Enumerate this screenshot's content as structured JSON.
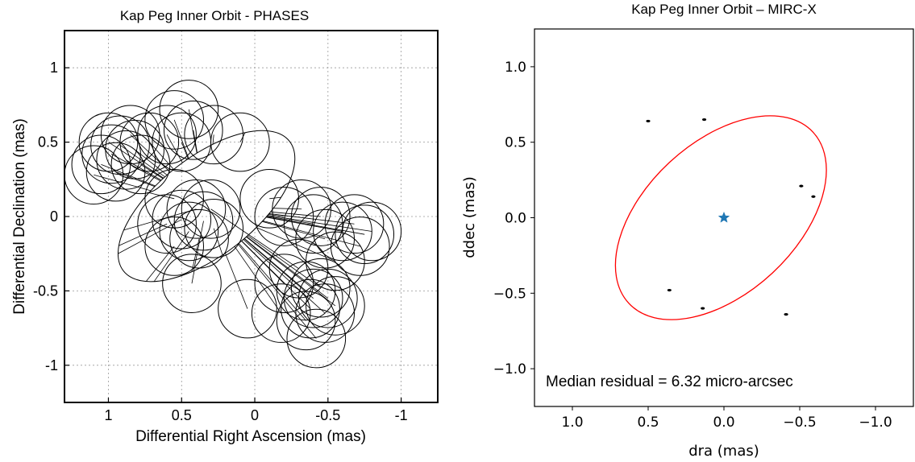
{
  "chart_data": [
    {
      "type": "scatter",
      "title": "Kap Peg Inner Orbit - PHASES",
      "xlabel": "Differential Right Ascension (mas)",
      "ylabel": "Differential Declination (mas)",
      "xlim": [
        1.3,
        -1.25
      ],
      "ylim": [
        -1.25,
        1.25
      ],
      "x_ticks": [
        1,
        0.5,
        0,
        -0.5,
        -1
      ],
      "y_ticks": [
        1,
        0.5,
        0,
        -0.5,
        -1
      ],
      "x_tick_labels": [
        "1",
        "0.5",
        "0",
        "-0.5",
        "-1"
      ],
      "y_tick_labels": [
        "1",
        "0.5",
        "0",
        "-0.5",
        "-1"
      ],
      "grid": true,
      "orbit": {
        "center": [
          0.33,
          0.07
        ],
        "a": 0.72,
        "b": 0.33,
        "angle_deg": -38
      },
      "error_circle_radius": 0.2,
      "points": [
        {
          "x": 1.1,
          "y": 0.28
        },
        {
          "x": 1.05,
          "y": 0.35
        },
        {
          "x": 0.98,
          "y": 0.42
        },
        {
          "x": 0.92,
          "y": 0.48
        },
        {
          "x": 0.88,
          "y": 0.38
        },
        {
          "x": 0.82,
          "y": 0.45
        },
        {
          "x": 0.95,
          "y": 0.3
        },
        {
          "x": 0.78,
          "y": 0.35
        },
        {
          "x": 1.0,
          "y": 0.5
        },
        {
          "x": 0.85,
          "y": 0.55
        },
        {
          "x": 0.72,
          "y": 0.5
        },
        {
          "x": 0.6,
          "y": 0.55
        },
        {
          "x": 0.5,
          "y": 0.5
        },
        {
          "x": 0.55,
          "y": 0.65
        },
        {
          "x": 0.42,
          "y": 0.58
        },
        {
          "x": 0.45,
          "y": 0.72
        },
        {
          "x": 0.28,
          "y": 0.55
        },
        {
          "x": 0.1,
          "y": 0.5
        },
        {
          "x": 0.55,
          "y": 0.12
        },
        {
          "x": 0.6,
          "y": -0.05
        },
        {
          "x": 0.5,
          "y": -0.02
        },
        {
          "x": 0.45,
          "y": -0.1
        },
        {
          "x": 0.4,
          "y": 0.05
        },
        {
          "x": 0.35,
          "y": -0.03
        },
        {
          "x": 0.3,
          "y": 0.05
        },
        {
          "x": 0.38,
          "y": -0.15
        },
        {
          "x": 0.28,
          "y": -0.08
        },
        {
          "x": 0.55,
          "y": -0.2
        },
        {
          "x": 0.43,
          "y": -0.45
        },
        {
          "x": 0.05,
          "y": -0.62
        },
        {
          "x": -0.1,
          "y": 0.12
        },
        {
          "x": -0.2,
          "y": 0.0
        },
        {
          "x": -0.32,
          "y": 0.05
        },
        {
          "x": -0.4,
          "y": -0.05
        },
        {
          "x": -0.45,
          "y": 0.0
        },
        {
          "x": -0.48,
          "y": -0.15
        },
        {
          "x": -0.6,
          "y": -0.1
        },
        {
          "x": -0.68,
          "y": -0.05
        },
        {
          "x": -0.75,
          "y": -0.12
        },
        {
          "x": -0.8,
          "y": -0.1
        },
        {
          "x": -0.72,
          "y": -0.2
        },
        {
          "x": -0.55,
          "y": -0.3
        },
        {
          "x": -0.3,
          "y": -0.35
        },
        {
          "x": -0.2,
          "y": -0.45
        },
        {
          "x": -0.35,
          "y": -0.5
        },
        {
          "x": -0.45,
          "y": -0.48
        },
        {
          "x": -0.5,
          "y": -0.55
        },
        {
          "x": -0.4,
          "y": -0.55
        },
        {
          "x": -0.55,
          "y": -0.6
        },
        {
          "x": -0.48,
          "y": -0.65
        },
        {
          "x": -0.38,
          "y": -0.62
        },
        {
          "x": -0.35,
          "y": -0.7
        },
        {
          "x": -0.18,
          "y": -0.65
        },
        {
          "x": -0.42,
          "y": -0.82
        }
      ]
    },
    {
      "type": "scatter",
      "title": "Kap Peg Inner Orbit – MIRC-X",
      "xlabel": "dra (mas)",
      "ylabel": "ddec (mas)",
      "xlim": [
        1.25,
        -1.25
      ],
      "ylim": [
        -1.25,
        1.25
      ],
      "x_ticks": [
        1.0,
        0.5,
        0.0,
        -0.5,
        -1.0
      ],
      "y_ticks": [
        1.0,
        0.5,
        0.0,
        -0.5,
        -1.0
      ],
      "x_tick_labels": [
        "1.0",
        "0.5",
        "0.0",
        "−0.5",
        "−1.0"
      ],
      "y_tick_labels": [
        "1.0",
        "0.5",
        "0.0",
        "−0.5",
        "−1.0"
      ],
      "grid": false,
      "orbit": {
        "center": [
          0.02,
          0.0
        ],
        "a": 0.83,
        "b": 0.5,
        "angle_deg": -43,
        "color": "#ff0000"
      },
      "primary_star": {
        "x": 0.0,
        "y": 0.0,
        "color": "#1f77b4"
      },
      "points": [
        {
          "x": 0.5,
          "y": 0.64
        },
        {
          "x": 0.13,
          "y": 0.65
        },
        {
          "x": -0.51,
          "y": 0.21
        },
        {
          "x": -0.59,
          "y": 0.14
        },
        {
          "x": 0.36,
          "y": -0.48
        },
        {
          "x": 0.14,
          "y": -0.6
        },
        {
          "x": -0.41,
          "y": -0.64
        }
      ],
      "annotation": "Median residual = 6.32 micro-arcsec"
    }
  ]
}
